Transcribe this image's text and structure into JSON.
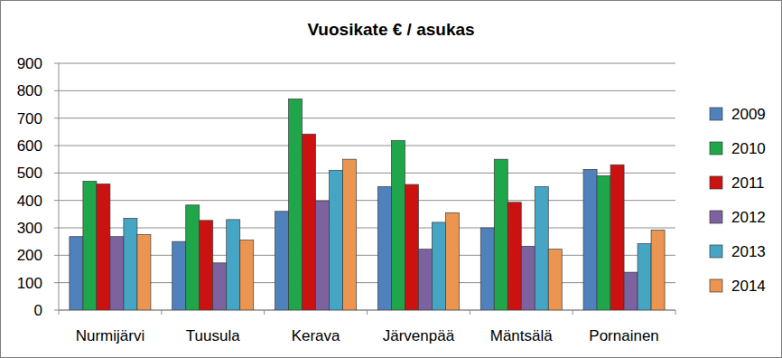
{
  "chart_data": {
    "type": "bar",
    "title": "Vuosikate € / asukas",
    "categories": [
      "Nurmijärvi",
      "Tuusula",
      "Kerava",
      "Järvenpää",
      "Mäntsälä",
      "Pornainen"
    ],
    "series": [
      {
        "name": "2009",
        "color": "#4f81bd",
        "values": [
          268,
          250,
          360,
          450,
          300,
          513
        ]
      },
      {
        "name": "2010",
        "color": "#1fa64a",
        "values": [
          470,
          383,
          770,
          618,
          550,
          490
        ]
      },
      {
        "name": "2011",
        "color": "#cc1111",
        "values": [
          460,
          327,
          642,
          458,
          393,
          530
        ]
      },
      {
        "name": "2012",
        "color": "#7d62a0",
        "values": [
          268,
          172,
          398,
          222,
          233,
          138
        ]
      },
      {
        "name": "2013",
        "color": "#44a6c4",
        "values": [
          335,
          330,
          510,
          320,
          450,
          242
        ]
      },
      {
        "name": "2014",
        "color": "#ec9550",
        "values": [
          275,
          255,
          550,
          355,
          222,
          292
        ]
      }
    ],
    "ylim": [
      0,
      900
    ],
    "yticks": [
      0,
      100,
      200,
      300,
      400,
      500,
      600,
      700,
      800,
      900
    ],
    "grid": true,
    "legend": "right"
  }
}
